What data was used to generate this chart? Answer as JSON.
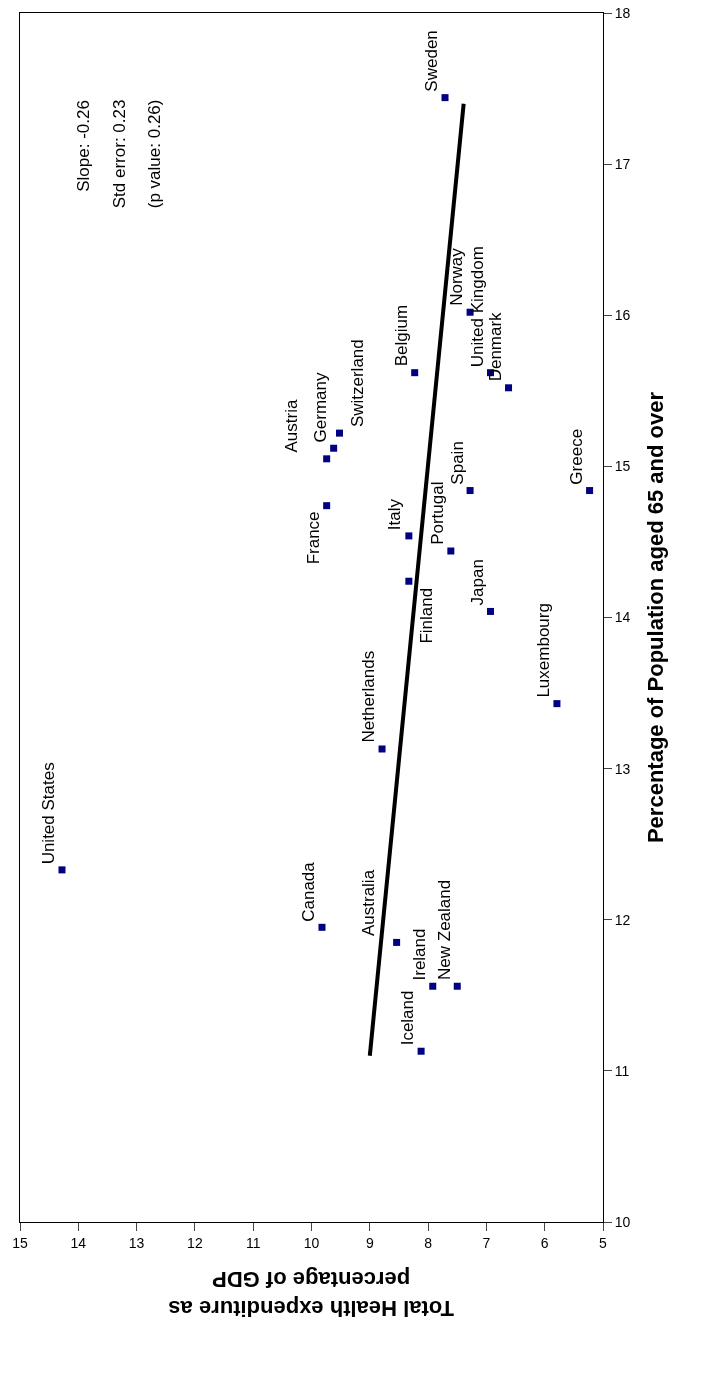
{
  "chart_data": {
    "type": "scatter",
    "xlabel": "Total Health expenditure as percentage of GDP",
    "ylabel": "Percentage of Population aged 65 and over",
    "xlim": [
      15,
      5
    ],
    "xticks": [
      15,
      14,
      13,
      12,
      11,
      10,
      9,
      8,
      7,
      6,
      5
    ],
    "ylim": [
      10,
      18
    ],
    "yticks": [
      10,
      11,
      12,
      13,
      14,
      15,
      16,
      17,
      18
    ],
    "grid": false,
    "series": [
      {
        "type": "scatter",
        "marker": "square",
        "color": "#000080",
        "x": [
          7.71,
          8.23,
          7.28,
          6.93,
          6.62,
          9.52,
          9.62,
          9.74,
          9.74,
          7.28,
          7.61,
          8.33,
          8.33,
          6.93,
          5.23,
          8.79,
          5.79,
          14.28,
          9.82,
          8.54,
          7.92,
          7.5,
          8.12
        ],
        "values": [
          17.44,
          15.62,
          16.02,
          15.62,
          15.52,
          15.22,
          15.12,
          15.05,
          14.74,
          14.84,
          14.44,
          14.54,
          14.24,
          14.04,
          14.84,
          13.13,
          13.43,
          12.33,
          11.95,
          11.85,
          11.56,
          11.56,
          11.13
        ]
      },
      {
        "type": "line",
        "line_style": "solid",
        "color": "#000000",
        "x": [
          9.0,
          7.39
        ],
        "values": [
          11.1,
          17.4
        ]
      }
    ],
    "annotations": [
      {
        "text": "Sweden",
        "x": 7.71,
        "y": 17.44
      },
      {
        "text": "Belgium",
        "x": 8.23,
        "y": 15.62
      },
      {
        "text": "Norway",
        "x": 7.28,
        "y": 16.02
      },
      {
        "text": "United Kingdom",
        "x": 6.93,
        "y": 15.62
      },
      {
        "text": "Denmark",
        "x": 6.62,
        "y": 15.52
      },
      {
        "text": "Switzerland",
        "x": 9.52,
        "y": 15.22
      },
      {
        "text": "Germany",
        "x": 9.62,
        "y": 15.12
      },
      {
        "text": "Austria",
        "x": 9.74,
        "y": 15.05
      },
      {
        "text": "France",
        "x": 9.74,
        "y": 14.74
      },
      {
        "text": "Spain",
        "x": 7.28,
        "y": 14.84
      },
      {
        "text": "Portugal",
        "x": 7.61,
        "y": 14.44
      },
      {
        "text": "Italy",
        "x": 8.33,
        "y": 14.54
      },
      {
        "text": "Finland",
        "x": 8.33,
        "y": 14.24
      },
      {
        "text": "Japan",
        "x": 6.93,
        "y": 14.04
      },
      {
        "text": "Greece",
        "x": 5.23,
        "y": 14.84
      },
      {
        "text": "Netherlands",
        "x": 8.79,
        "y": 13.13
      },
      {
        "text": "Luxembourg",
        "x": 5.79,
        "y": 13.43
      },
      {
        "text": "United States",
        "x": 14.28,
        "y": 12.33
      },
      {
        "text": "Canada",
        "x": 9.82,
        "y": 11.95
      },
      {
        "text": "Australia",
        "x": 8.54,
        "y": 11.85
      },
      {
        "text": "Ireland",
        "x": 7.92,
        "y": 11.56
      },
      {
        "text": "New Zealand",
        "x": 7.5,
        "y": 11.56
      },
      {
        "text": "Iceland",
        "x": 8.12,
        "y": 11.13
      },
      "Slope: -0.26",
      "Std error: 0.23",
      "(p value: 0.26)"
    ]
  }
}
